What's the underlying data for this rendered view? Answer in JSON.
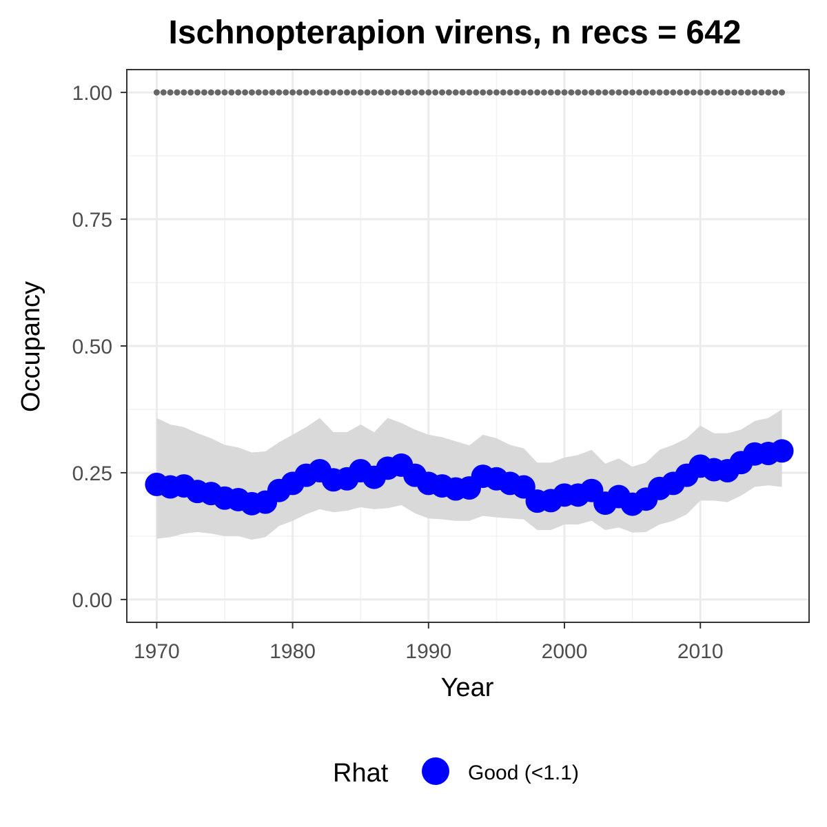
{
  "chart_data": {
    "type": "line",
    "title": "Ischnopterapion virens, n recs = 642",
    "xlabel": "Year",
    "ylabel": "Occupancy",
    "xlim": [
      1967.8,
      2018
    ],
    "ylim": [
      -0.045,
      1.045
    ],
    "x_ticks": [
      1970,
      1980,
      1990,
      2000,
      2010
    ],
    "x_tick_labels": [
      "1970",
      "1980",
      "1990",
      "2000",
      "2010"
    ],
    "y_ticks": [
      0,
      0.25,
      0.5,
      0.75,
      1
    ],
    "y_tick_labels": [
      "0.00",
      "0.25",
      "0.50",
      "0.75",
      "1.00"
    ],
    "grid": true,
    "x": [
      1970,
      1971,
      1972,
      1973,
      1974,
      1975,
      1976,
      1977,
      1978,
      1979,
      1980,
      1981,
      1982,
      1983,
      1984,
      1985,
      1986,
      1987,
      1988,
      1989,
      1990,
      1991,
      1992,
      1993,
      1994,
      1995,
      1996,
      1997,
      1998,
      1999,
      2000,
      2001,
      2002,
      2003,
      2004,
      2005,
      2006,
      2007,
      2008,
      2009,
      2010,
      2011,
      2012,
      2013,
      2014,
      2015,
      2016
    ],
    "series": [
      {
        "name": "Good (<1.1)",
        "color": "#0000ff",
        "values": [
          0.227,
          0.222,
          0.224,
          0.213,
          0.209,
          0.2,
          0.197,
          0.189,
          0.192,
          0.215,
          0.229,
          0.245,
          0.254,
          0.236,
          0.238,
          0.254,
          0.241,
          0.259,
          0.265,
          0.245,
          0.229,
          0.224,
          0.218,
          0.22,
          0.243,
          0.238,
          0.229,
          0.222,
          0.194,
          0.195,
          0.206,
          0.206,
          0.215,
          0.19,
          0.203,
          0.188,
          0.198,
          0.219,
          0.229,
          0.245,
          0.263,
          0.256,
          0.254,
          0.27,
          0.287,
          0.288,
          0.293
        ],
        "lower": [
          0.12,
          0.123,
          0.13,
          0.133,
          0.13,
          0.125,
          0.125,
          0.118,
          0.123,
          0.145,
          0.155,
          0.168,
          0.178,
          0.172,
          0.175,
          0.182,
          0.178,
          0.18,
          0.186,
          0.17,
          0.16,
          0.158,
          0.155,
          0.155,
          0.165,
          0.162,
          0.16,
          0.158,
          0.137,
          0.137,
          0.148,
          0.148,
          0.155,
          0.137,
          0.142,
          0.132,
          0.133,
          0.148,
          0.155,
          0.168,
          0.195,
          0.195,
          0.192,
          0.205,
          0.222,
          0.225,
          0.222
        ],
        "upper": [
          0.358,
          0.345,
          0.34,
          0.328,
          0.318,
          0.305,
          0.3,
          0.29,
          0.292,
          0.31,
          0.325,
          0.34,
          0.358,
          0.33,
          0.33,
          0.345,
          0.33,
          0.358,
          0.348,
          0.335,
          0.325,
          0.32,
          0.312,
          0.304,
          0.325,
          0.318,
          0.305,
          0.298,
          0.27,
          0.27,
          0.28,
          0.285,
          0.295,
          0.268,
          0.278,
          0.262,
          0.27,
          0.295,
          0.305,
          0.318,
          0.343,
          0.328,
          0.328,
          0.335,
          0.352,
          0.358,
          0.375
        ]
      },
      {
        "name": "",
        "color": "#666666",
        "style": "dotted",
        "values": [
          1,
          1,
          1,
          1,
          1,
          1,
          1,
          1,
          1,
          1,
          1,
          1,
          1,
          1,
          1,
          1,
          1,
          1,
          1,
          1,
          1,
          1,
          1,
          1,
          1,
          1,
          1,
          1,
          1,
          1,
          1,
          1,
          1,
          1,
          1,
          1,
          1,
          1,
          1,
          1,
          1,
          1,
          1,
          1,
          1,
          1,
          1
        ]
      }
    ],
    "band_color": "#d9d9d9",
    "legend": {
      "title": "Rhat",
      "position": "bottom",
      "items": [
        {
          "label": "Good (<1.1)",
          "color": "#0000ff"
        }
      ]
    }
  }
}
